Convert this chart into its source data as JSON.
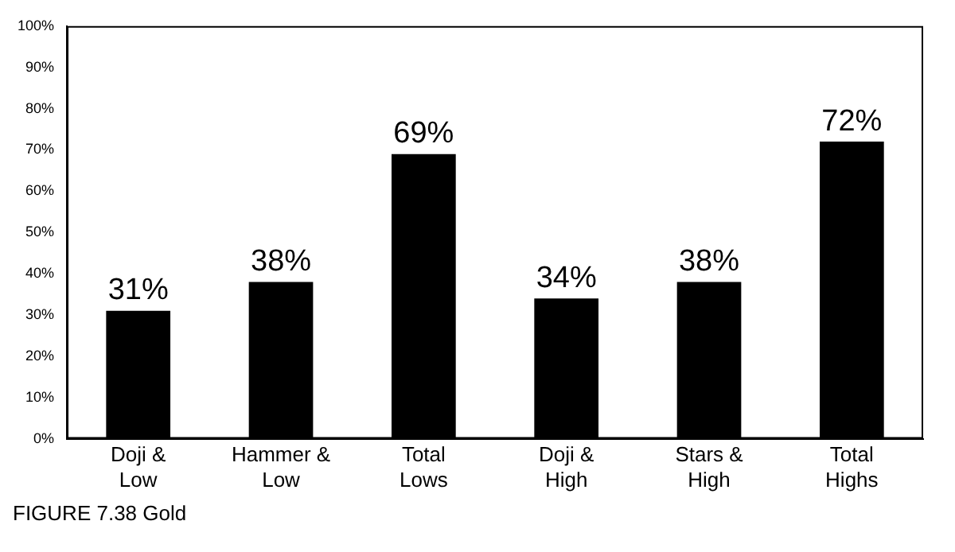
{
  "chart_data": {
    "type": "bar",
    "categories": [
      "Doji &\nLow",
      "Hammer &\nLow",
      "Total\nLows",
      "Doji &\nHigh",
      "Stars &\nHigh",
      "Total\nHighs"
    ],
    "values": [
      31,
      38,
      69,
      34,
      38,
      72
    ],
    "value_labels": [
      "31%",
      "38%",
      "69%",
      "34%",
      "38%",
      "72%"
    ],
    "color": "#000000",
    "ylim": [
      0,
      100
    ],
    "yticks": [
      {
        "value": 0,
        "label": "0%"
      },
      {
        "value": 10,
        "label": "10%"
      },
      {
        "value": 20,
        "label": "20%"
      },
      {
        "value": 30,
        "label": "30%"
      },
      {
        "value": 40,
        "label": "40%"
      },
      {
        "value": 50,
        "label": "50%"
      },
      {
        "value": 60,
        "label": "60%"
      },
      {
        "value": 70,
        "label": "70%"
      },
      {
        "value": 80,
        "label": "80%"
      },
      {
        "value": 90,
        "label": "90%"
      },
      {
        "value": 100,
        "label": "100%"
      }
    ],
    "grid": false,
    "legend": false,
    "annotations": [
      "FIGURE 7.38 Gold"
    ]
  }
}
